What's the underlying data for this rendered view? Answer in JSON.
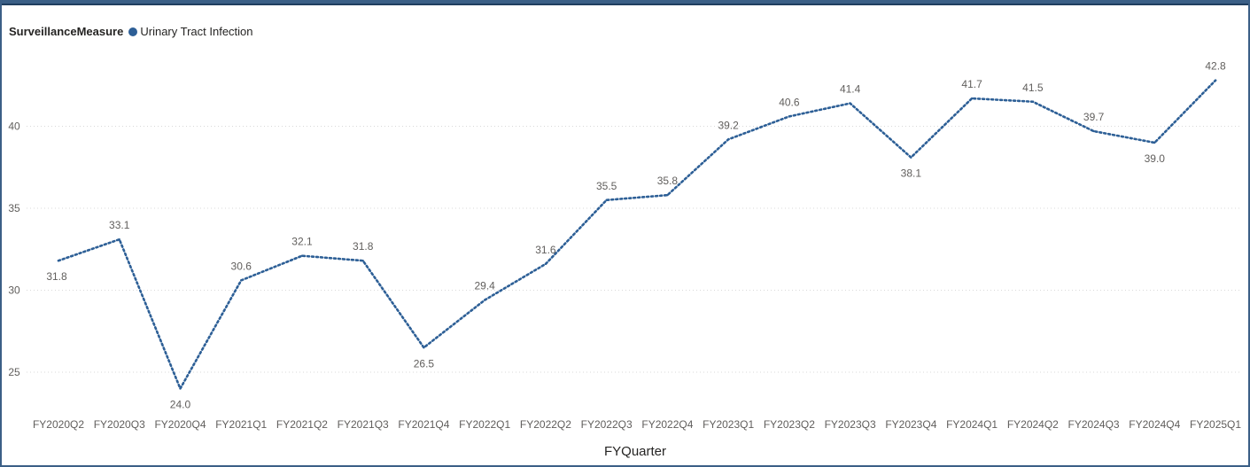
{
  "legend": {
    "title": "SurveillanceMeasure",
    "series_label": "Urinary Tract Infection"
  },
  "chart_data": {
    "type": "line",
    "xlabel": "FYQuarter",
    "ylabel": "",
    "ylim": [
      22.5,
      44.8
    ],
    "yticks": [
      25,
      30,
      35,
      40
    ],
    "grid": true,
    "line_style": "dotted",
    "legend_position": "top-left",
    "categories": [
      "FY2020Q2",
      "FY2020Q3",
      "FY2020Q4",
      "FY2021Q1",
      "FY2021Q2",
      "FY2021Q3",
      "FY2021Q4",
      "FY2022Q1",
      "FY2022Q2",
      "FY2022Q3",
      "FY2022Q4",
      "FY2023Q1",
      "FY2023Q2",
      "FY2023Q3",
      "FY2023Q4",
      "FY2024Q1",
      "FY2024Q2",
      "FY2024Q3",
      "FY2024Q4",
      "FY2025Q1"
    ],
    "series": [
      {
        "name": "Urinary Tract Infection",
        "color": "#2d5f96",
        "values": [
          31.8,
          33.1,
          24.0,
          30.6,
          32.1,
          31.8,
          26.5,
          29.4,
          31.6,
          35.5,
          35.8,
          39.2,
          40.6,
          41.4,
          38.1,
          41.7,
          41.5,
          39.7,
          39.0,
          42.8
        ],
        "labels": [
          "31.8",
          "33.1",
          "24.0",
          "30.6",
          "32.1",
          "31.8",
          "26.5",
          "29.4",
          "31.6",
          "35.5",
          "35.8",
          "39.2",
          "40.6",
          "41.4",
          "38.1",
          "41.7",
          "41.5",
          "39.7",
          "39.0",
          "42.8"
        ]
      }
    ]
  }
}
